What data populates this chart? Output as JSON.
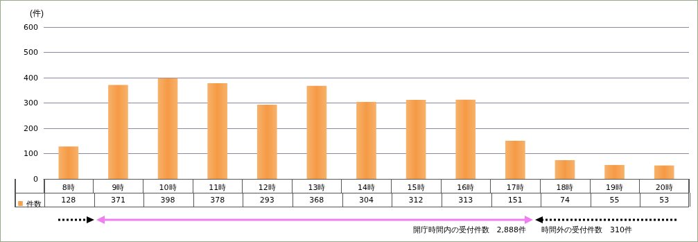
{
  "chart_data": {
    "type": "bar",
    "ylabel": "(件)",
    "categories": [
      "8時",
      "9時",
      "10時",
      "11時",
      "12時",
      "13時",
      "14時",
      "15時",
      "16時",
      "17時",
      "18時",
      "19時",
      "20時"
    ],
    "series": [
      {
        "name": "件数",
        "color": "#f59a45",
        "values": [
          128,
          371,
          398,
          378,
          293,
          368,
          304,
          312,
          313,
          151,
          74,
          55,
          53
        ]
      }
    ],
    "ylim": [
      0,
      600
    ],
    "yticks": [
      0,
      100,
      200,
      300,
      400,
      500,
      600
    ],
    "grid": "y",
    "legend": "bottom left",
    "data_labels": true,
    "annotations": [
      "開庁時間内の受付件数　2,888件",
      "時間外の受付件数　310件"
    ]
  }
}
